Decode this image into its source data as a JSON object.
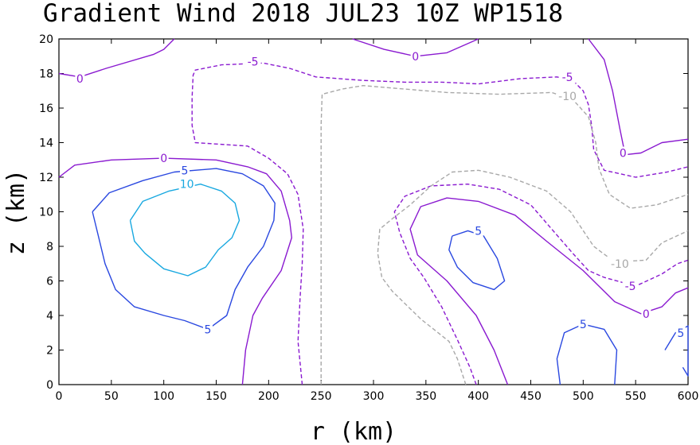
{
  "chart_data": {
    "type": "contour",
    "title": "Gradient Wind 2018 JUL23 10Z   WP1518",
    "xlabel": "r (km)",
    "ylabel": "z (km)",
    "xlim": [
      0,
      600
    ],
    "ylim": [
      0,
      20
    ],
    "xticks": [
      "0",
      "50",
      "100",
      "150",
      "200",
      "250",
      "300",
      "350",
      "400",
      "450",
      "500",
      "550",
      "600"
    ],
    "yticks": [
      "0",
      "2",
      "4",
      "6",
      "8",
      "10",
      "12",
      "14",
      "16",
      "18",
      "20"
    ],
    "contours": [
      {
        "level": "0",
        "color": "#8a1ad0",
        "dash": false,
        "labels": [
          {
            "text": "0",
            "x": 20,
            "y": 17.7
          }
        ],
        "points": [
          [
            0,
            18
          ],
          [
            20,
            17.8
          ],
          [
            45,
            18.3
          ],
          [
            90,
            19.1
          ],
          [
            100,
            19.4
          ],
          [
            110,
            20
          ]
        ]
      },
      {
        "level": "0",
        "color": "#8a1ad0",
        "dash": false,
        "labels": [
          {
            "text": "0",
            "x": 340,
            "y": 19
          }
        ],
        "points": [
          [
            280,
            20
          ],
          [
            310,
            19.4
          ],
          [
            340,
            19
          ],
          [
            370,
            19.2
          ],
          [
            400,
            20
          ]
        ]
      },
      {
        "level": "0",
        "color": "#8a1ad0",
        "dash": false,
        "labels": [
          {
            "text": "0",
            "x": 538,
            "y": 13.4
          }
        ],
        "points": [
          [
            505,
            20
          ],
          [
            520,
            18.8
          ],
          [
            528,
            17
          ],
          [
            535,
            14.8
          ],
          [
            540,
            13.3
          ],
          [
            555,
            13.4
          ],
          [
            575,
            14
          ],
          [
            600,
            14.2
          ]
        ]
      },
      {
        "level": "0",
        "color": "#8a1ad0",
        "dash": false,
        "labels": [
          {
            "text": "0",
            "x": 100,
            "y": 13.1
          }
        ],
        "points": [
          [
            0,
            12
          ],
          [
            15,
            12.7
          ],
          [
            50,
            13
          ],
          [
            100,
            13.1
          ],
          [
            150,
            13
          ],
          [
            180,
            12.6
          ],
          [
            198,
            12.2
          ],
          [
            212,
            11.2
          ],
          [
            220,
            9.5
          ],
          [
            222,
            8.5
          ],
          [
            212,
            6.6
          ],
          [
            194,
            5
          ],
          [
            185,
            4
          ],
          [
            178,
            2
          ],
          [
            175,
            0
          ]
        ]
      },
      {
        "level": "0",
        "color": "#8a1ad0",
        "dash": false,
        "labels": [
          {
            "text": "0",
            "x": 560,
            "y": 4.1
          }
        ],
        "points": [
          [
            428,
            0
          ],
          [
            415,
            2
          ],
          [
            398,
            4
          ],
          [
            370,
            6
          ],
          [
            342,
            7.5
          ],
          [
            335,
            9
          ],
          [
            345,
            10.3
          ],
          [
            370,
            10.8
          ],
          [
            400,
            10.6
          ],
          [
            435,
            9.8
          ],
          [
            465,
            8.3
          ],
          [
            500,
            6.6
          ],
          [
            530,
            4.8
          ],
          [
            555,
            4.1
          ],
          [
            575,
            4.5
          ],
          [
            588,
            5.3
          ],
          [
            600,
            5.6
          ]
        ]
      },
      {
        "level": "-5",
        "color": "#8a1ad0",
        "dash": true,
        "labels": [
          {
            "text": "-5",
            "x": 185,
            "y": 18.7
          },
          {
            "text": "-5",
            "x": 485,
            "y": 17.8
          },
          {
            "text": "-5",
            "x": 545,
            "y": 5.7
          }
        ],
        "points": [
          [
            232,
            0
          ],
          [
            228,
            2.5
          ],
          [
            230,
            5
          ],
          [
            232,
            7
          ],
          [
            233,
            9
          ],
          [
            228,
            11
          ],
          [
            218,
            12.2
          ],
          [
            200,
            13.1
          ],
          [
            180,
            13.8
          ],
          [
            130,
            14
          ],
          [
            127,
            15
          ],
          [
            127,
            16.6
          ],
          [
            128,
            17.9
          ],
          [
            130,
            18.2
          ],
          [
            155,
            18.5
          ],
          [
            195,
            18.6
          ],
          [
            220,
            18.3
          ],
          [
            245,
            17.8
          ],
          [
            290,
            17.6
          ],
          [
            330,
            17.5
          ],
          [
            365,
            17.5
          ],
          [
            400,
            17.4
          ],
          [
            440,
            17.7
          ],
          [
            475,
            17.8
          ],
          [
            490,
            17.6
          ],
          [
            500,
            17
          ],
          [
            505,
            16.2
          ],
          [
            508,
            15
          ],
          [
            510,
            13.6
          ],
          [
            520,
            12.4
          ],
          [
            550,
            12
          ],
          [
            580,
            12.3
          ],
          [
            600,
            12.6
          ]
        ]
      },
      {
        "level": "-5",
        "color": "#8a1ad0",
        "dash": true,
        "labels": [],
        "points": [
          [
            398,
            0
          ],
          [
            392,
            1
          ],
          [
            380,
            2.6
          ],
          [
            365,
            4.5
          ],
          [
            348,
            6.2
          ],
          [
            335,
            7.3
          ],
          [
            325,
            8.8
          ],
          [
            320,
            10
          ],
          [
            330,
            10.9
          ],
          [
            355,
            11.5
          ],
          [
            390,
            11.6
          ],
          [
            420,
            11.3
          ],
          [
            450,
            10.4
          ],
          [
            470,
            9
          ],
          [
            490,
            7.6
          ],
          [
            505,
            6.6
          ],
          [
            520,
            6.2
          ],
          [
            550,
            5.7
          ],
          [
            575,
            6.4
          ],
          [
            590,
            7
          ],
          [
            600,
            7.2
          ]
        ]
      },
      {
        "level": "-10",
        "color": "#a8a8a8",
        "dash": true,
        "labels": [
          {
            "text": "-10",
            "x": 485,
            "y": 16.7
          },
          {
            "text": "-10",
            "x": 535,
            "y": 7
          }
        ],
        "points": [
          [
            250,
            0
          ],
          [
            250,
            5
          ],
          [
            250,
            10
          ],
          [
            250,
            15
          ],
          [
            251,
            16.8
          ],
          [
            270,
            17.1
          ],
          [
            290,
            17.3
          ],
          [
            330,
            17.1
          ],
          [
            370,
            16.9
          ],
          [
            420,
            16.8
          ],
          [
            470,
            16.9
          ],
          [
            490,
            16.5
          ],
          [
            505,
            15.5
          ],
          [
            512,
            14
          ],
          [
            515,
            12.5
          ],
          [
            525,
            11
          ],
          [
            545,
            10.2
          ],
          [
            570,
            10.4
          ],
          [
            600,
            11
          ]
        ]
      },
      {
        "level": "-10",
        "color": "#a8a8a8",
        "dash": true,
        "labels": [],
        "points": [
          [
            388,
            0
          ],
          [
            380,
            1.5
          ],
          [
            372,
            2.5
          ],
          [
            345,
            3.8
          ],
          [
            318,
            5.4
          ],
          [
            308,
            6.2
          ],
          [
            304,
            7.6
          ],
          [
            306,
            9
          ],
          [
            318,
            9.6
          ],
          [
            335,
            10.4
          ],
          [
            355,
            11.5
          ],
          [
            375,
            12.3
          ],
          [
            400,
            12.4
          ],
          [
            430,
            12
          ],
          [
            465,
            11.2
          ],
          [
            488,
            10
          ],
          [
            510,
            8
          ],
          [
            530,
            7.1
          ],
          [
            560,
            7.2
          ],
          [
            575,
            8.2
          ],
          [
            600,
            8.9
          ]
        ]
      },
      {
        "level": "5",
        "color": "#2a48e0",
        "dash": false,
        "labels": [
          {
            "text": "5",
            "x": 120,
            "y": 12.4
          },
          {
            "text": "5",
            "x": 142,
            "y": 3.2
          }
        ],
        "points": [
          [
            32,
            10
          ],
          [
            38,
            8.5
          ],
          [
            44,
            7
          ],
          [
            54,
            5.5
          ],
          [
            72,
            4.5
          ],
          [
            100,
            4
          ],
          [
            120,
            3.7
          ],
          [
            142,
            3.2
          ],
          [
            160,
            4
          ],
          [
            168,
            5.5
          ],
          [
            180,
            6.8
          ],
          [
            195,
            8
          ],
          [
            205,
            9.5
          ],
          [
            206,
            10.5
          ],
          [
            195,
            11.5
          ],
          [
            175,
            12.2
          ],
          [
            150,
            12.5
          ],
          [
            110,
            12.3
          ],
          [
            80,
            11.8
          ],
          [
            48,
            11.1
          ],
          [
            32,
            10
          ]
        ]
      },
      {
        "level": "5",
        "color": "#2a48e0",
        "dash": false,
        "labels": [
          {
            "text": "5",
            "x": 400,
            "y": 8.9
          }
        ],
        "points": [
          [
            375,
            8.6
          ],
          [
            390,
            8.9
          ],
          [
            405,
            8.6
          ],
          [
            418,
            7.3
          ],
          [
            425,
            6
          ],
          [
            415,
            5.5
          ],
          [
            395,
            5.9
          ],
          [
            380,
            6.8
          ],
          [
            372,
            7.8
          ],
          [
            375,
            8.6
          ]
        ]
      },
      {
        "level": "5",
        "color": "#2a48e0",
        "dash": false,
        "labels": [
          {
            "text": "5",
            "x": 500,
            "y": 3.5
          }
        ],
        "points": [
          [
            478,
            0
          ],
          [
            475,
            1.5
          ],
          [
            482,
            3
          ],
          [
            500,
            3.5
          ],
          [
            520,
            3.2
          ],
          [
            532,
            2
          ],
          [
            530,
            0
          ]
        ]
      },
      {
        "level": "5",
        "color": "#2a48e0",
        "dash": false,
        "labels": [
          {
            "text": "5",
            "x": 593,
            "y": 3
          }
        ],
        "points": [
          [
            578,
            2
          ],
          [
            588,
            3
          ],
          [
            597,
            3.3
          ],
          [
            600,
            3.4
          ],
          [
            600,
            0.5
          ],
          [
            595,
            1
          ]
        ]
      },
      {
        "level": "10",
        "color": "#18a8e0",
        "dash": false,
        "labels": [
          {
            "text": "10",
            "x": 122,
            "y": 11.6
          }
        ],
        "points": [
          [
            68,
            9.5
          ],
          [
            72,
            8.3
          ],
          [
            82,
            7.6
          ],
          [
            100,
            6.7
          ],
          [
            123,
            6.3
          ],
          [
            140,
            6.8
          ],
          [
            152,
            7.8
          ],
          [
            165,
            8.5
          ],
          [
            172,
            9.5
          ],
          [
            168,
            10.5
          ],
          [
            155,
            11.2
          ],
          [
            135,
            11.6
          ],
          [
            105,
            11.2
          ],
          [
            80,
            10.6
          ],
          [
            68,
            9.5
          ]
        ]
      }
    ]
  }
}
